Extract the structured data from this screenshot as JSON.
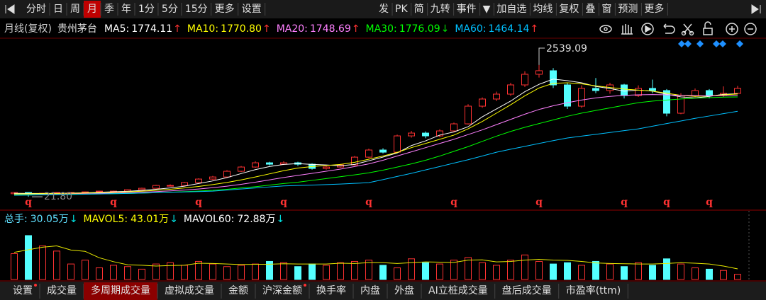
{
  "toolbar": {
    "left": [
      "分时",
      "日",
      "周",
      "月",
      "季",
      "年",
      "1分",
      "5分",
      "15分",
      "更多",
      "设置"
    ],
    "active": 3,
    "right": [
      "发",
      "PK",
      "简",
      "九转",
      "事件",
      "▼",
      "加自选",
      "均线",
      "复权",
      "叠",
      "窗",
      "预测",
      "更多"
    ]
  },
  "chart_data": {
    "type": "candlestick",
    "title": "月线(复权)",
    "stock": "贵州茅台",
    "ma_legend": [
      {
        "label": "MA5:",
        "value": "1774.11",
        "arrow": "↑",
        "arrow_color": "#ff3232",
        "color": "#ffffff",
        "values": [
          90,
          85,
          85,
          88,
          92,
          98,
          108,
          118,
          127,
          143,
          165,
          190,
          225,
          275,
          325,
          388,
          465,
          540,
          600,
          640,
          655,
          640,
          630,
          615,
          640,
          710,
          780,
          860,
          1000,
          1090,
          1200,
          1260,
          1360,
          1550,
          1700,
          1850,
          2030,
          2170,
          2270,
          2240,
          2200,
          2130,
          2090,
          2040,
          2060,
          2040,
          1980,
          1930,
          1910,
          1940,
          1980,
          1990
        ]
      },
      {
        "label": "MA10:",
        "value": "1770.80",
        "arrow": "↑",
        "arrow_color": "#ff3232",
        "color": "#ffff00",
        "values": [
          75,
          77,
          80,
          83,
          87,
          92,
          98,
          106,
          116,
          128,
          145,
          165,
          190,
          220,
          255,
          295,
          345,
          400,
          460,
          520,
          570,
          600,
          620,
          640,
          680,
          740,
          800,
          870,
          960,
          1040,
          1120,
          1200,
          1320,
          1460,
          1620,
          1780,
          1950,
          2100,
          2190,
          2200,
          2180,
          2140,
          2110,
          2080,
          2060,
          2040,
          2000,
          1960,
          1940,
          1950,
          1970,
          1985
        ]
      },
      {
        "label": "MA20:",
        "value": "1748.69",
        "arrow": "↑",
        "arrow_color": "#ff3232",
        "color": "#ff80ff",
        "values": [
          65,
          67,
          70,
          73,
          76,
          80,
          85,
          92,
          100,
          110,
          122,
          135,
          150,
          170,
          195,
          225,
          260,
          300,
          345,
          390,
          430,
          470,
          510,
          550,
          600,
          650,
          720,
          800,
          880,
          960,
          1040,
          1120,
          1210,
          1300,
          1400,
          1500,
          1600,
          1690,
          1760,
          1820,
          1870,
          1910,
          1940,
          1960,
          1970,
          1975,
          1970,
          1960,
          1955,
          1950,
          1955,
          1960
        ]
      },
      {
        "label": "MA30:",
        "value": "1776.09",
        "arrow": "↓",
        "arrow_color": "#00e000",
        "color": "#00ff00",
        "values": [
          60,
          62,
          64,
          66,
          69,
          72,
          76,
          80,
          85,
          92,
          100,
          110,
          120,
          132,
          145,
          165,
          190,
          215,
          245,
          275,
          300,
          335,
          370,
          405,
          440,
          480,
          530,
          590,
          650,
          720,
          800,
          890,
          980,
          1080,
          1180,
          1270,
          1350,
          1420,
          1490,
          1560,
          1620,
          1670,
          1720,
          1770,
          1820,
          1850,
          1870,
          1890,
          1905,
          1915,
          1925,
          1930
        ]
      },
      {
        "label": "MA60:",
        "value": "1464.14",
        "arrow": "↑",
        "arrow_color": "#ff3232",
        "color": "#00c0ff",
        "values": [
          50,
          54,
          58,
          62,
          66,
          70,
          75,
          80,
          85,
          92,
          100,
          107,
          114,
          122,
          130,
          150,
          170,
          190,
          210,
          230,
          238,
          245,
          255,
          265,
          278,
          292,
          350,
          410,
          470,
          535,
          600,
          665,
          730,
          800,
          873,
          930,
          985,
          1040,
          1095,
          1145,
          1180,
          1215,
          1250,
          1285,
          1320,
          1370,
          1420,
          1470,
          1520,
          1565,
          1610,
          1656
        ]
      }
    ],
    "open": [
      80,
      103,
      62,
      89,
      103,
      103,
      116,
      130,
      130,
      157,
      184,
      238,
      238,
      293,
      360,
      400,
      509,
      590,
      671,
      644,
      671,
      644,
      563,
      590,
      630,
      779,
      915,
      874,
      1185,
      1239,
      1185,
      1280,
      1415,
      1753,
      1889,
      1983,
      2159,
      2362,
      2430,
      2159,
      1753,
      2092,
      2051,
      2159,
      1956,
      2092,
      2051,
      1618,
      1956,
      2051,
      1956,
      1997
    ],
    "high": [
      110,
      108,
      95,
      110,
      112,
      122,
      138,
      140,
      165,
      195,
      250,
      260,
      305,
      375,
      420,
      530,
      610,
      700,
      690,
      700,
      690,
      660,
      610,
      650,
      800,
      940,
      950,
      1210,
      1280,
      1270,
      1310,
      1440,
      1790,
      1920,
      2030,
      2200,
      2420,
      2539.09,
      2480,
      2200,
      2150,
      2290,
      2200,
      2180,
      2150,
      2260,
      2080,
      2000,
      2090,
      2080,
      2130,
      2140
    ],
    "low": [
      70,
      21.8,
      55,
      85,
      95,
      98,
      110,
      120,
      125,
      150,
      178,
      220,
      230,
      285,
      340,
      390,
      495,
      575,
      620,
      630,
      610,
      540,
      540,
      575,
      620,
      760,
      850,
      860,
      1150,
      1140,
      1160,
      1260,
      1400,
      1720,
      1850,
      1950,
      2120,
      2300,
      2100,
      1700,
      1720,
      2000,
      1990,
      1900,
      1930,
      2000,
      1560,
      1600,
      1920,
      1900,
      1930,
      1980
    ],
    "close": [
      103,
      62,
      89,
      103,
      103,
      116,
      130,
      130,
      157,
      184,
      238,
      238,
      293,
      360,
      400,
      509,
      590,
      671,
      644,
      671,
      644,
      563,
      590,
      630,
      779,
      915,
      874,
      1185,
      1239,
      1185,
      1280,
      1415,
      1753,
      1889,
      1983,
      2159,
      2362,
      2430,
      2159,
      1753,
      2092,
      2051,
      2159,
      1956,
      2092,
      2051,
      1618,
      1956,
      2051,
      1956,
      1997,
      2092
    ],
    "up_color": "#ff3232",
    "down_color": "#54ffff",
    "ylim": [
      -220,
      2970
    ],
    "annotations": [
      {
        "index": 37,
        "label": "2539.09"
      },
      {
        "index": 1,
        "label": "21.80"
      }
    ],
    "markers": {
      "label": "q",
      "color": "#ff3232",
      "indices": [
        1,
        7,
        13,
        19,
        25,
        31,
        37,
        43,
        46,
        49
      ]
    }
  },
  "volume_chart": {
    "type": "bar",
    "legend": [
      {
        "label": "总手:",
        "value": "30.05万",
        "arrow": "↓",
        "arrow_color": "#00e0e0",
        "color": "#60e0ff"
      },
      {
        "label": "MAVOL5:",
        "value": "43.01万",
        "arrow": "↓",
        "arrow_color": "#00e0e0",
        "color": "#ffff00"
      },
      {
        "label": "MAVOL60:",
        "value": "72.88万",
        "arrow": "↓",
        "arrow_color": "#00e0e0",
        "color": "#ffffff"
      }
    ],
    "values": [
      200,
      340,
      260,
      220,
      120,
      150,
      90,
      110,
      100,
      80,
      120,
      130,
      110,
      140,
      120,
      100,
      110,
      120,
      140,
      130,
      100,
      120,
      110,
      130,
      140,
      150,
      110,
      90,
      160,
      130,
      120,
      150,
      170,
      130,
      110,
      150,
      190,
      140,
      120,
      130,
      110,
      140,
      120,
      100,
      130,
      110,
      160,
      120,
      90,
      80,
      70,
      40
    ],
    "ylim": [
      0,
      400
    ],
    "mavol5": {
      "color": "#e8e800",
      "values": [
        210,
        230,
        250,
        260,
        228,
        218,
        168,
        138,
        114,
        110,
        104,
        108,
        110,
        126,
        124,
        120,
        116,
        118,
        118,
        122,
        120,
        120,
        120,
        126,
        124,
        130,
        130,
        124,
        130,
        136,
        134,
        132,
        150,
        152,
        136,
        140,
        150,
        156,
        150,
        148,
        140,
        128,
        124,
        122,
        120,
        120,
        124,
        130,
        126,
        120,
        104,
        82
      ]
    }
  },
  "tabs": {
    "items": [
      "设置",
      "成交量",
      "多周期成交量",
      "虚拟成交量",
      "金额",
      "沪深金额",
      "换手率",
      "内盘",
      "外盘",
      "AI立桩成交量",
      "盘后成交量",
      "市盈率(ttm)"
    ],
    "active": 2,
    "dotted": [
      0,
      5
    ]
  }
}
